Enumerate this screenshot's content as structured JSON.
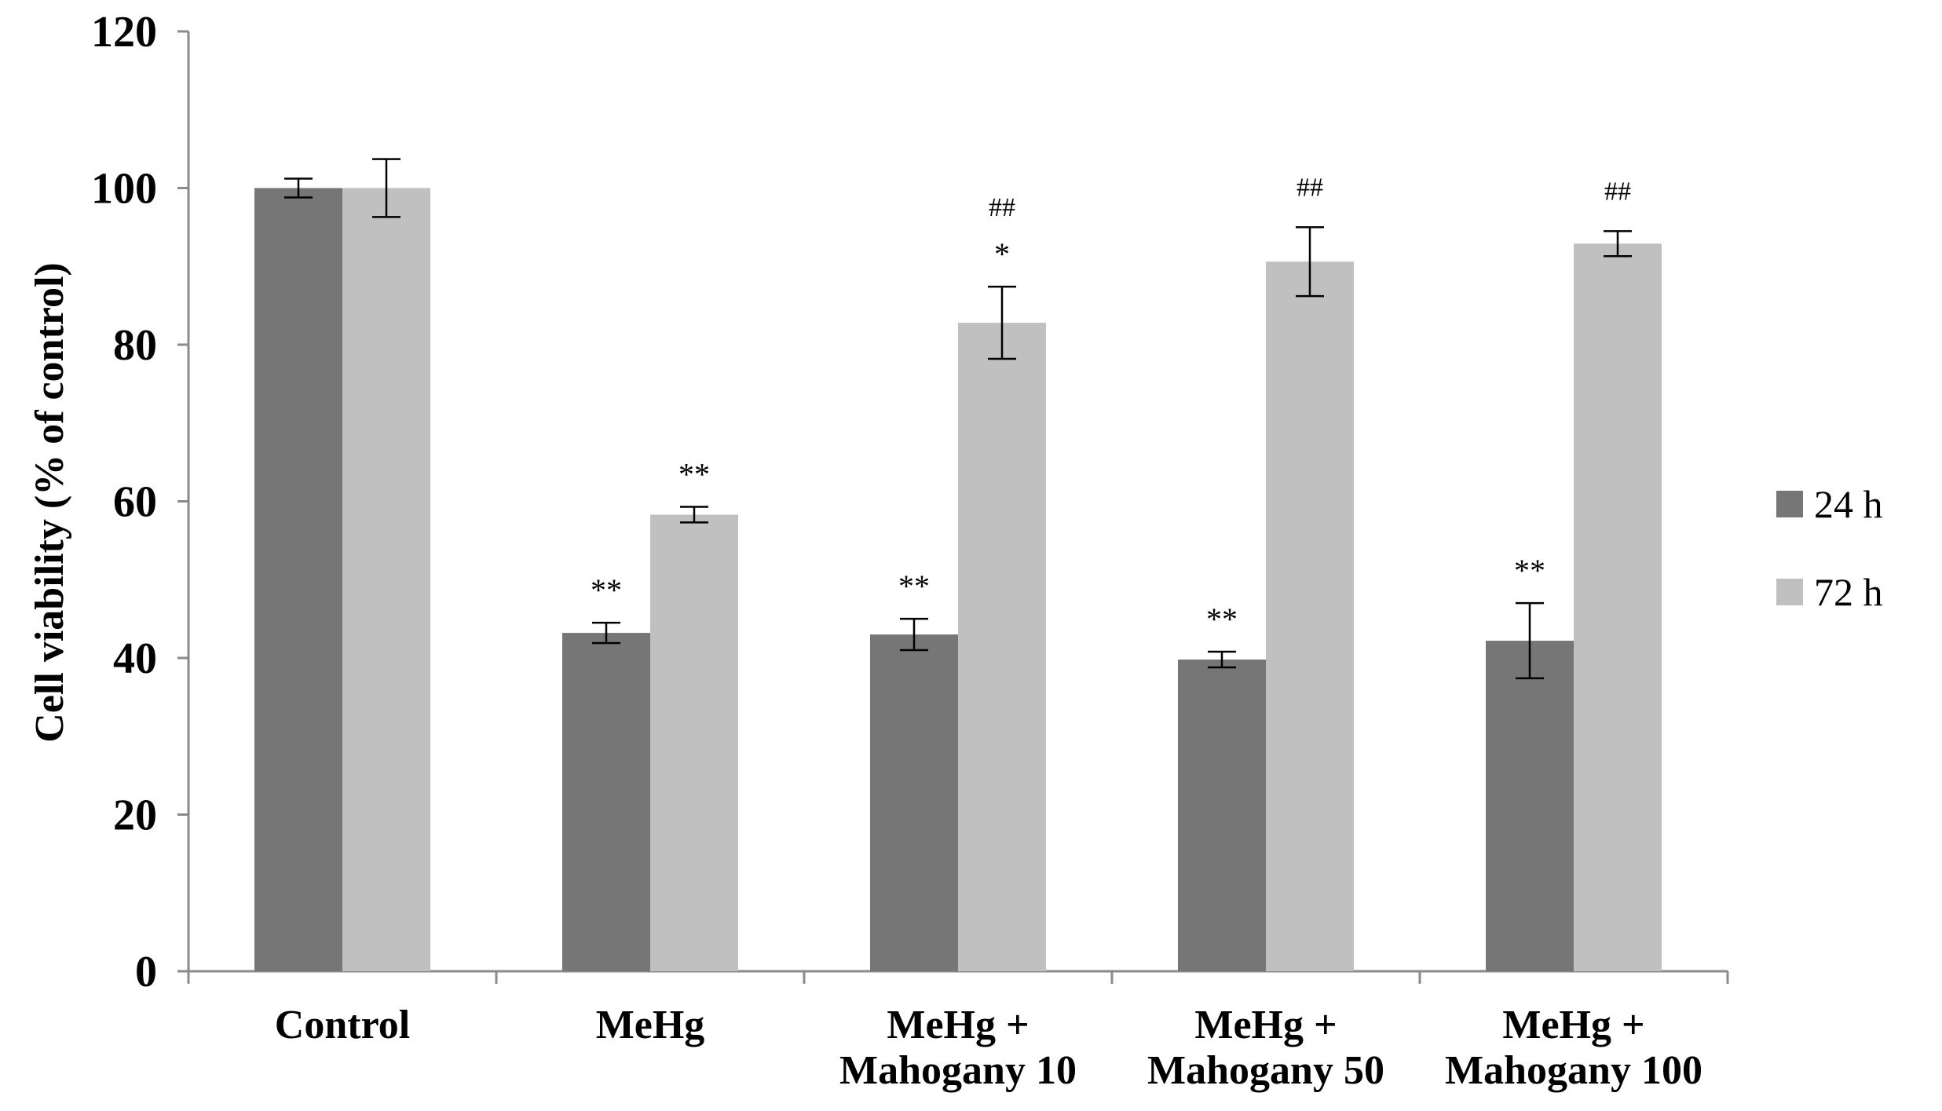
{
  "chart_data": {
    "type": "bar",
    "title": "",
    "xlabel": "",
    "ylabel": "Cell viability (% of control)",
    "ylim": [
      0,
      120
    ],
    "yticks": [
      0,
      20,
      40,
      60,
      80,
      100,
      120
    ],
    "categories": [
      [
        "Control"
      ],
      [
        "MeHg"
      ],
      [
        "MeHg +",
        "Mahogany 10"
      ],
      [
        "MeHg +",
        "Mahogany 50"
      ],
      [
        "MeHg +",
        "Mahogany 100"
      ]
    ],
    "series": [
      {
        "name": "24 h",
        "color": "#767676",
        "values": [
          100,
          43.2,
          43.0,
          39.8,
          42.2
        ],
        "errors": [
          1.2,
          1.3,
          2.0,
          1.0,
          4.8
        ],
        "annotations": [
          [],
          [
            "**"
          ],
          [
            "**"
          ],
          [
            "**"
          ],
          [
            "**"
          ]
        ]
      },
      {
        "name": "72 h",
        "color": "#c0c0c0",
        "values": [
          100,
          58.3,
          82.8,
          90.6,
          92.9
        ],
        "errors": [
          3.7,
          1.0,
          4.6,
          4.4,
          1.6
        ],
        "annotations": [
          [],
          [
            "**"
          ],
          [
            "##",
            "*"
          ],
          [
            "##"
          ],
          [
            "##"
          ]
        ]
      }
    ],
    "legend": {
      "position": "right",
      "items": [
        "24 h",
        "72 h"
      ]
    },
    "grid": false
  }
}
